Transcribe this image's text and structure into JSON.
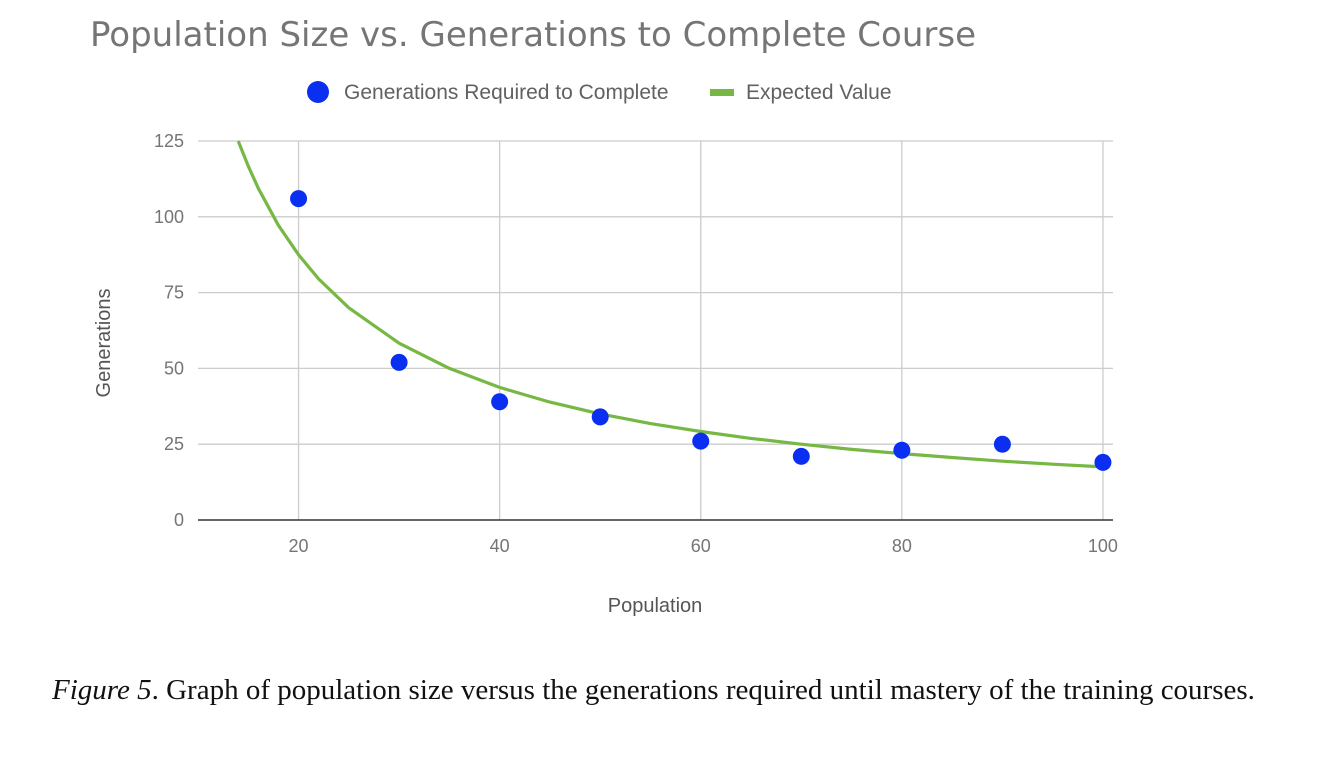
{
  "chart_data": {
    "type": "scatter",
    "title": "Population Size vs. Generations to Complete Course",
    "xlabel": "Population",
    "ylabel": "Generations",
    "xlim": [
      10,
      101
    ],
    "ylim": [
      0,
      125
    ],
    "x_ticks": [
      20,
      40,
      60,
      80,
      100
    ],
    "y_ticks": [
      0,
      25,
      50,
      75,
      100,
      125
    ],
    "grid": true,
    "legend_position": "top",
    "series": [
      {
        "name": "Generations Required to Complete",
        "type": "scatter",
        "color": "#0a2ff0",
        "x": [
          20,
          30,
          40,
          50,
          60,
          70,
          80,
          90,
          100
        ],
        "y": [
          106,
          52,
          39,
          34,
          26,
          21,
          23,
          25,
          19
        ]
      },
      {
        "name": "Expected Value",
        "type": "line",
        "color": "#76b843",
        "x": [
          14,
          15,
          16,
          18,
          20,
          22,
          25,
          30,
          35,
          40,
          45,
          50,
          55,
          60,
          65,
          70,
          75,
          80,
          85,
          90,
          95,
          100
        ],
        "y": [
          125,
          116.7,
          109.4,
          97.2,
          87.5,
          79.5,
          70,
          58.3,
          50,
          43.75,
          38.9,
          35,
          31.8,
          29.2,
          26.9,
          25,
          23.3,
          21.9,
          20.6,
          19.4,
          18.4,
          17.5
        ]
      }
    ]
  },
  "caption": {
    "label": "Figure 5",
    "text": ". Graph of population size versus the generations required until mastery of the training courses."
  }
}
